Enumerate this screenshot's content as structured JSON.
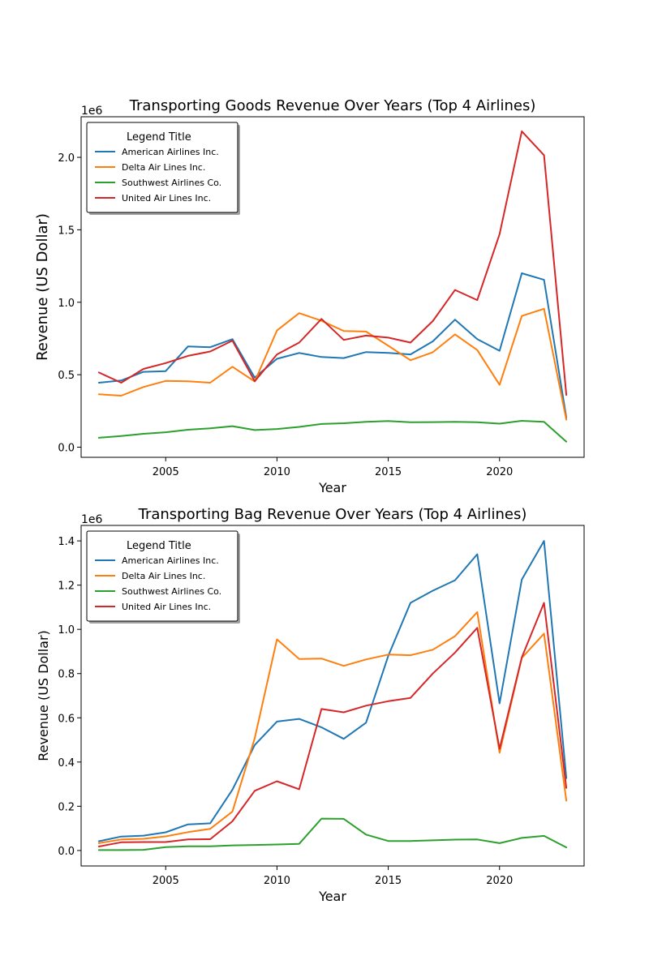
{
  "chart_data": [
    {
      "type": "line",
      "title": "Transporting Goods Revenue Over Years (Top 4 Airlines)",
      "xlabel": "Year",
      "ylabel": "Revenue (US Dollar)",
      "offset_label": "1e6",
      "xlim": [
        2001.2,
        2023.8
      ],
      "ylim": [
        -70000,
        2280000
      ],
      "xticks": [
        2005,
        2010,
        2015,
        2020
      ],
      "xtick_labels": [
        "2005",
        "2010",
        "2015",
        "2020"
      ],
      "yticks": [
        0,
        500000,
        1000000,
        1500000,
        2000000
      ],
      "ytick_labels": [
        "0.0",
        "0.5",
        "1.0",
        "1.5",
        "2.0"
      ],
      "grid": false,
      "legend": {
        "title": "Legend Title",
        "placement": "upper-left"
      },
      "x": [
        2002,
        2003,
        2004,
        2005,
        2006,
        2007,
        2008,
        2009,
        2010,
        2011,
        2012,
        2013,
        2014,
        2015,
        2016,
        2017,
        2018,
        2019,
        2020,
        2021,
        2022,
        2023
      ],
      "series": [
        {
          "name": "American Airlines Inc.",
          "color": "#1f77b4",
          "values": [
            445000,
            460000,
            520000,
            525000,
            695000,
            690000,
            745000,
            480000,
            610000,
            650000,
            622000,
            615000,
            656000,
            650000,
            640000,
            730000,
            880000,
            745000,
            665000,
            1200000,
            1155000,
            205000
          ]
        },
        {
          "name": "Delta Air Lines Inc.",
          "color": "#ff7f0e",
          "values": [
            365000,
            355000,
            415000,
            457000,
            455000,
            445000,
            555000,
            453000,
            805000,
            925000,
            872000,
            802000,
            798000,
            700000,
            600000,
            655000,
            778000,
            670000,
            430000,
            905000,
            955000,
            190000
          ]
        },
        {
          "name": "Southwest Airlines Co.",
          "color": "#2ca02c",
          "values": [
            65000,
            77000,
            92000,
            103000,
            120000,
            130000,
            145000,
            118000,
            125000,
            140000,
            160000,
            165000,
            175000,
            180000,
            172000,
            173000,
            175000,
            172000,
            162000,
            182000,
            175000,
            38000
          ]
        },
        {
          "name": "United Air Lines Inc.",
          "color": "#d62728",
          "values": [
            515000,
            445000,
            540000,
            580000,
            630000,
            660000,
            735000,
            455000,
            640000,
            722000,
            885000,
            740000,
            770000,
            756000,
            722000,
            870000,
            1085000,
            1015000,
            1470000,
            2180000,
            2015000,
            360000
          ]
        }
      ]
    },
    {
      "type": "line",
      "title": "Transporting Bag Revenue Over Years (Top 4 Airlines)",
      "xlabel": "Year",
      "ylabel": "Revenue (US Dollar)",
      "offset_label": "1e6",
      "xlim": [
        2001.2,
        2023.8
      ],
      "ylim": [
        -70000,
        1470000
      ],
      "xticks": [
        2005,
        2010,
        2015,
        2020
      ],
      "xtick_labels": [
        "2005",
        "2010",
        "2015",
        "2020"
      ],
      "yticks": [
        0,
        200000,
        400000,
        600000,
        800000,
        1000000,
        1200000,
        1400000
      ],
      "ytick_labels": [
        "0.0",
        "0.2",
        "0.4",
        "0.6",
        "0.8",
        "1.0",
        "1.2",
        "1.4"
      ],
      "grid": false,
      "legend": {
        "title": "Legend Title",
        "placement": "upper-left"
      },
      "x": [
        2002,
        2003,
        2004,
        2005,
        2006,
        2007,
        2008,
        2009,
        2010,
        2011,
        2012,
        2013,
        2014,
        2015,
        2016,
        2017,
        2018,
        2019,
        2020,
        2021,
        2022,
        2023
      ],
      "series": [
        {
          "name": "American Airlines Inc.",
          "color": "#1f77b4",
          "values": [
            42000,
            63000,
            67000,
            82000,
            118000,
            123000,
            275000,
            477000,
            583000,
            595000,
            557000,
            505000,
            578000,
            880000,
            1120000,
            1175000,
            1222000,
            1340000,
            665000,
            1225000,
            1400000,
            327000
          ]
        },
        {
          "name": "Delta Air Lines Inc.",
          "color": "#ff7f0e",
          "values": [
            33000,
            50000,
            53000,
            64000,
            83000,
            98000,
            176000,
            508000,
            955000,
            866000,
            868000,
            835000,
            864000,
            886000,
            883000,
            908000,
            969000,
            1078000,
            442000,
            871000,
            981000,
            225000
          ]
        },
        {
          "name": "Southwest Airlines Co.",
          "color": "#2ca02c",
          "values": [
            2000,
            2000,
            3000,
            15000,
            19000,
            19000,
            23000,
            25000,
            27000,
            30000,
            144000,
            143000,
            72000,
            43000,
            43000,
            46000,
            49000,
            50000,
            33000,
            57000,
            66000,
            14000
          ]
        },
        {
          "name": "United Air Lines Inc.",
          "color": "#d62728",
          "values": [
            18000,
            37000,
            38000,
            38000,
            50000,
            51000,
            132000,
            270000,
            313000,
            277000,
            640000,
            625000,
            655000,
            675000,
            690000,
            800000,
            895000,
            1007000,
            460000,
            873000,
            1120000,
            283000
          ]
        }
      ]
    }
  ]
}
